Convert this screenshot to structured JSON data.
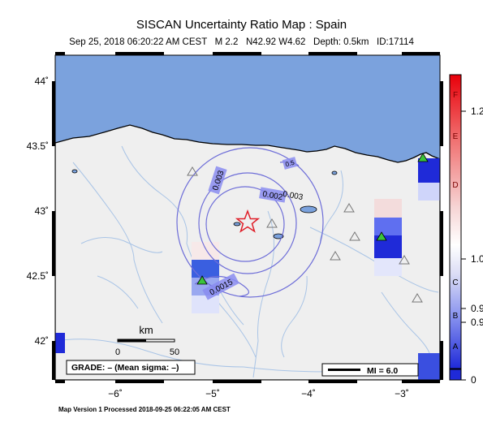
{
  "header": {
    "title": "SISCAN Uncertainty Ratio Map : Spain",
    "subtitle": "Sep 25, 2018 06:20:22 AM CEST   M 2.2   N42.92 W4.62   Depth: 0.5km   ID:17114"
  },
  "map": {
    "lat_labels": [
      "44˚",
      "43.5˚",
      "43˚",
      "42.5˚",
      "42˚"
    ],
    "lon_labels": [
      "−6˚",
      "−5˚",
      "−4˚",
      "−3˚"
    ],
    "contour_labels": [
      "0.003",
      "0.002",
      "0.003",
      "0.0015",
      "0.5"
    ],
    "scale_bar": {
      "unit": "km",
      "ticks": [
        "0",
        "50"
      ]
    },
    "grade_box": "GRADE: – (Mean sigma: –)",
    "mi_box": "MI = 6.0",
    "epicenter": {
      "lat": 42.92,
      "lon": -4.62
    },
    "colors": {
      "sea": "#7ba2dd",
      "land": "#efefef",
      "river": "#a9c4e6",
      "epicenter": "#e0202a",
      "station": "#3bc43b",
      "contour": "#6e6ed8"
    }
  },
  "colorbar": {
    "letters": [
      "F",
      "E",
      "D",
      "C",
      "B",
      "A"
    ],
    "values": [
      "1.2",
      "1.0",
      "0.9",
      "0.9",
      "0"
    ]
  },
  "footer": {
    "text": "Map Version 1 Processed 2018-09-25 06:22:05 AM CEST"
  }
}
